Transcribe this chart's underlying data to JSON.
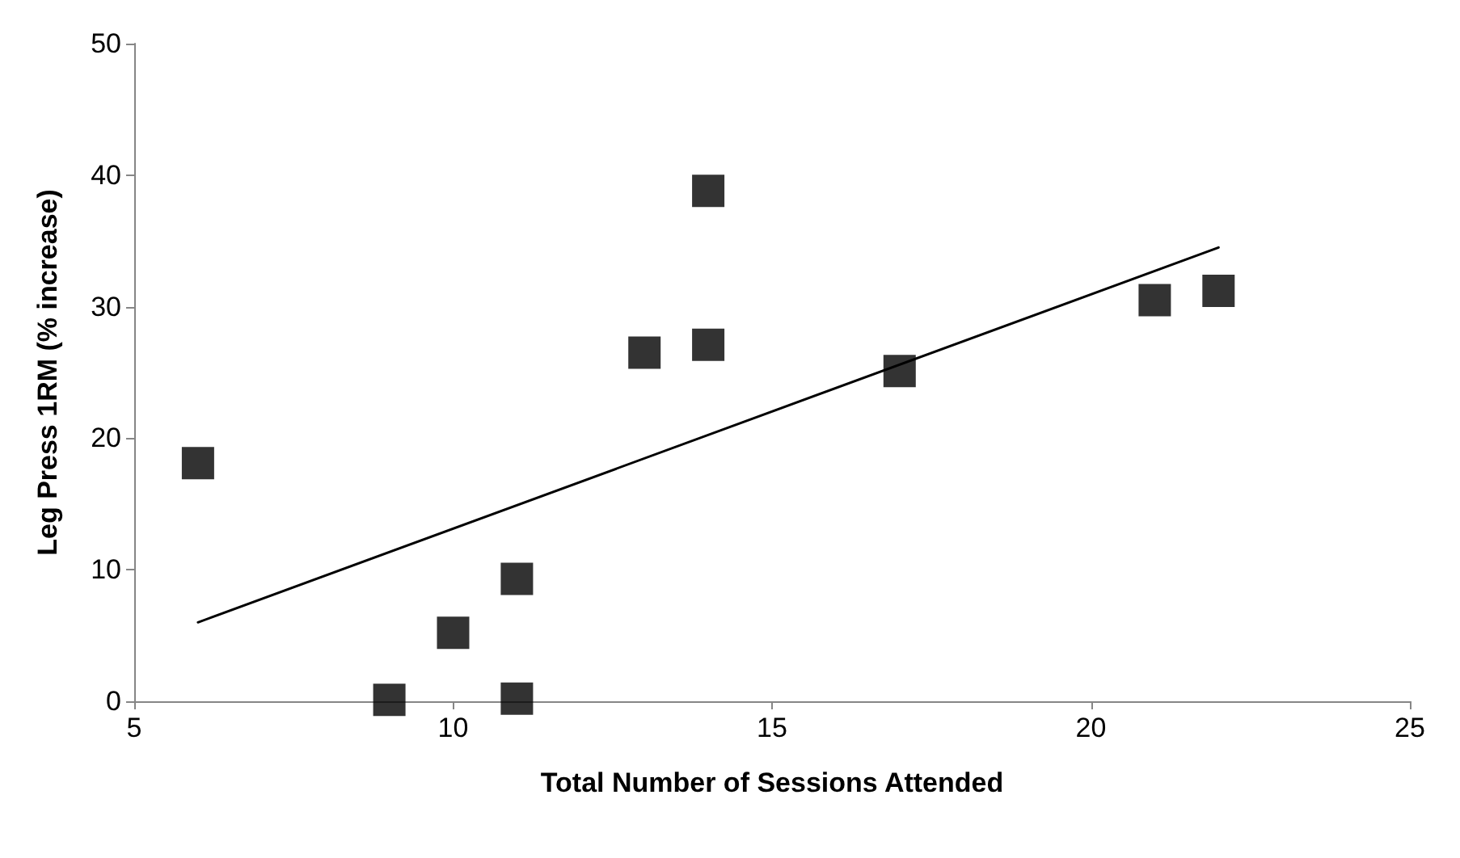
{
  "chart_data": {
    "type": "scatter",
    "xlabel": "Total Number of Sessions Attended",
    "ylabel": "Leg Press 1RM (% increase)",
    "marker": "square",
    "xlim": [
      5,
      25
    ],
    "xticks": [
      5,
      10,
      15,
      20,
      25
    ],
    "ylim": [
      0,
      50
    ],
    "yticks": [
      0,
      10,
      20,
      30,
      40,
      50
    ],
    "series": [
      {
        "color": "#000000",
        "x": [
          6,
          9,
          10,
          11,
          11,
          13,
          14,
          14,
          17,
          21,
          22
        ],
        "values": [
          18.1,
          0.1,
          5.2,
          9.3,
          0.2,
          26.5,
          38.8,
          27.1,
          25.1,
          30.5,
          31.2
        ]
      },
      {
        "type": "line",
        "color": "#000000",
        "marker": "none",
        "line_style": "solid",
        "x": [
          6,
          22
        ],
        "values": [
          6.0,
          34.5
        ]
      }
    ]
  }
}
